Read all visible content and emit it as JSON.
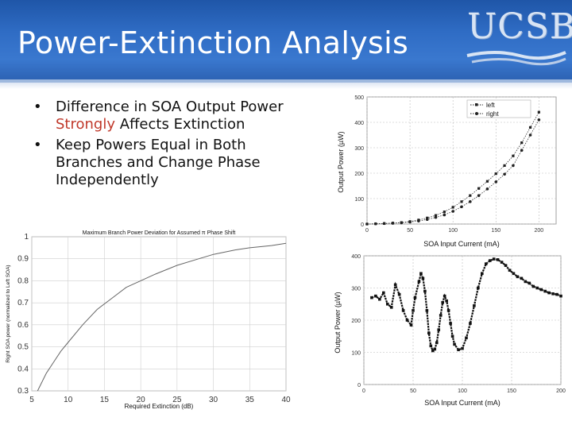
{
  "slide": {
    "title": "Power-Extinction Analysis",
    "logo_text": "UCSB"
  },
  "bullets": [
    {
      "before": "Difference in SOA Output Power ",
      "emphasis": "Strongly",
      "after": " Affects Extinction"
    },
    {
      "text": "Keep Powers Equal in Both Branches and Change Phase Independently"
    }
  ],
  "colors": {
    "header": "#2f6cc4",
    "emphasis": "#c0392b"
  },
  "chart_data": [
    {
      "type": "line",
      "title": "Maximum Branch Power Deviation for Assumed π Phase Shift",
      "xlabel": "Required Extinction (dB)",
      "ylabel": "Right SOA power (normalized to Left SOA)",
      "xlim": [
        5,
        40
      ],
      "ylim": [
        0.3,
        1
      ],
      "xticks": [
        "5",
        "10",
        "15",
        "20",
        "25",
        "30",
        "35",
        "40"
      ],
      "yticks": [
        "0.3",
        "0.4",
        "0.5",
        "0.6",
        "0.7",
        "0.8",
        "0.9",
        "1"
      ],
      "x": [
        5.8,
        7,
        8,
        9,
        10,
        12,
        14,
        16,
        18,
        20,
        22,
        25,
        28,
        30,
        33,
        35,
        38,
        40
      ],
      "values": [
        0.3,
        0.38,
        0.43,
        0.48,
        0.52,
        0.6,
        0.67,
        0.72,
        0.77,
        0.8,
        0.83,
        0.87,
        0.9,
        0.92,
        0.94,
        0.95,
        0.96,
        0.97
      ]
    },
    {
      "type": "line",
      "title": "",
      "xlabel": "SOA Input Current (mA)",
      "ylabel": "Output Power (µW)",
      "xlim": [
        0,
        220
      ],
      "ylim": [
        0,
        500
      ],
      "xticks": [
        "0",
        "50",
        "100",
        "150",
        "200"
      ],
      "yticks": [
        "0",
        "100",
        "200",
        "300",
        "400",
        "500"
      ],
      "legend": [
        "left",
        "right"
      ],
      "series": [
        {
          "name": "left",
          "x": [
            0,
            10,
            20,
            30,
            40,
            50,
            60,
            70,
            80,
            90,
            100,
            110,
            120,
            130,
            140,
            150,
            160,
            170,
            180,
            190,
            200
          ],
          "values": [
            0,
            1,
            2,
            4,
            6,
            10,
            16,
            24,
            34,
            48,
            66,
            88,
            112,
            140,
            168,
            198,
            230,
            268,
            320,
            380,
            440
          ]
        },
        {
          "name": "right",
          "x": [
            0,
            10,
            20,
            30,
            40,
            50,
            60,
            70,
            80,
            90,
            100,
            110,
            120,
            130,
            140,
            150,
            160,
            170,
            180,
            190,
            200
          ],
          "values": [
            0,
            1,
            2,
            3,
            5,
            8,
            12,
            18,
            26,
            36,
            50,
            68,
            88,
            112,
            138,
            166,
            196,
            230,
            290,
            350,
            410
          ]
        }
      ]
    },
    {
      "type": "scatter",
      "title": "",
      "xlabel": "SOA Input Current (mA)",
      "ylabel": "Output Power (µW)",
      "xlim": [
        0,
        200
      ],
      "ylim": [
        0,
        400
      ],
      "xticks": [
        "0",
        "50",
        "100",
        "150",
        "200"
      ],
      "yticks": [
        "0",
        "100",
        "200",
        "300",
        "400"
      ],
      "x": [
        8,
        12,
        16,
        20,
        24,
        28,
        32,
        36,
        40,
        44,
        48,
        50,
        52,
        56,
        58,
        60,
        62,
        64,
        66,
        68,
        70,
        72,
        74,
        76,
        78,
        80,
        82,
        84,
        86,
        88,
        90,
        92,
        96,
        100,
        104,
        108,
        112,
        116,
        120,
        124,
        128,
        132,
        136,
        140,
        144,
        148,
        152,
        156,
        160,
        164,
        168,
        172,
        176,
        180,
        184,
        188,
        192,
        196,
        200
      ],
      "values": [
        270,
        275,
        265,
        285,
        250,
        240,
        310,
        280,
        230,
        200,
        185,
        230,
        270,
        320,
        345,
        330,
        290,
        230,
        160,
        120,
        105,
        110,
        130,
        170,
        215,
        255,
        275,
        260,
        230,
        190,
        150,
        125,
        108,
        112,
        145,
        190,
        245,
        300,
        345,
        375,
        385,
        390,
        388,
        380,
        370,
        355,
        345,
        335,
        330,
        320,
        315,
        305,
        300,
        295,
        290,
        285,
        282,
        280,
        275
      ]
    }
  ]
}
